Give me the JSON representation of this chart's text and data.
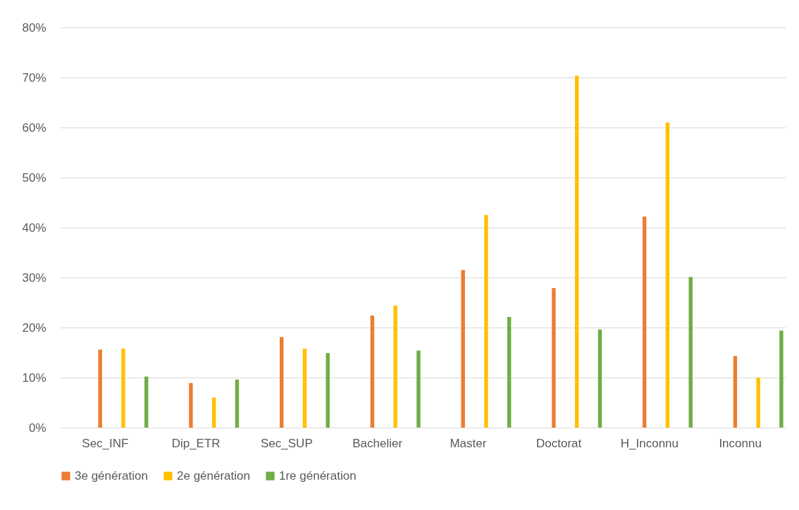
{
  "chart_data": {
    "type": "bar",
    "categories": [
      "Sec_INF",
      "Dip_ETR",
      "Sec_SUP",
      "Bachelier",
      "Master",
      "Doctorat",
      "H_Inconnu",
      "Inconnu"
    ],
    "series": [
      {
        "name": "3e génération",
        "color": "#ed7d31",
        "values": [
          15.6,
          8.9,
          18.1,
          22.4,
          31.5,
          27.9,
          42.2,
          14.3
        ]
      },
      {
        "name": "2e génération",
        "color": "#ffc000",
        "values": [
          15.8,
          6.0,
          15.8,
          24.4,
          42.5,
          70.4,
          61.0,
          10.0
        ]
      },
      {
        "name": "1re génération",
        "color": "#70ad47",
        "values": [
          10.2,
          9.6,
          14.9,
          15.4,
          22.1,
          19.6,
          30.1,
          19.4
        ]
      }
    ],
    "ylim": [
      0,
      80
    ],
    "yticks": [
      {
        "value": 0,
        "label": "0%"
      },
      {
        "value": 10,
        "label": "10%"
      },
      {
        "value": 20,
        "label": "20%"
      },
      {
        "value": 30,
        "label": "30%"
      },
      {
        "value": 40,
        "label": "40%"
      },
      {
        "value": 50,
        "label": "50%"
      },
      {
        "value": 60,
        "label": "60%"
      },
      {
        "value": 70,
        "label": "70%"
      },
      {
        "value": 80,
        "label": "80%"
      }
    ],
    "grid": "y",
    "legend": "bottom"
  }
}
